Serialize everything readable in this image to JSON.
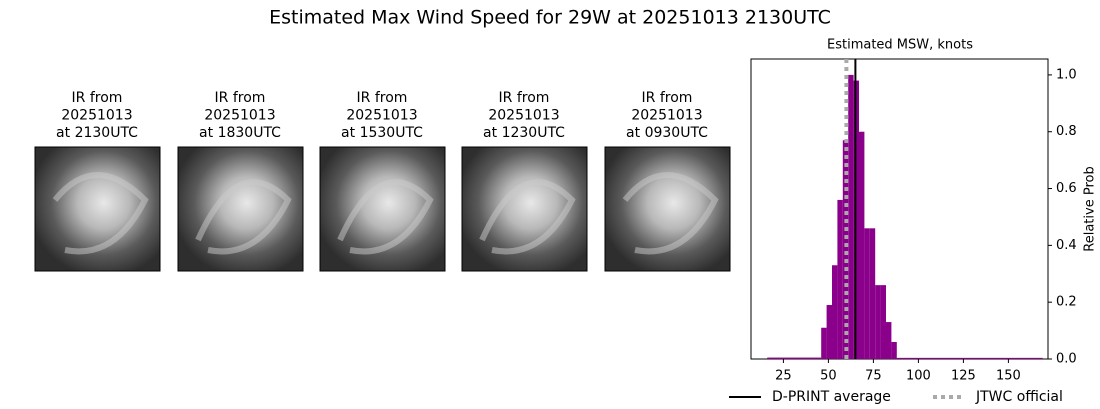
{
  "figure_title": "Estimated Max Wind Speed for 29W at 20251013 2130UTC",
  "panels": [
    {
      "title_lines": [
        "IR from",
        "20251013",
        "at 2130UTC"
      ]
    },
    {
      "title_lines": [
        "IR from",
        "20251013",
        "at 1830UTC"
      ]
    },
    {
      "title_lines": [
        "IR from",
        "20251013",
        "at 1530UTC"
      ]
    },
    {
      "title_lines": [
        "IR from",
        "20251013",
        "at 1230UTC"
      ]
    },
    {
      "title_lines": [
        "IR from",
        "20251013",
        "at 0930UTC"
      ]
    }
  ],
  "chart_data": {
    "type": "histogram",
    "title": "Estimated MSW, knots",
    "y_label": "Relative Prob",
    "bins": [
      16,
      46,
      49,
      52,
      55,
      58,
      61,
      64,
      67,
      70,
      73,
      76,
      79,
      82,
      85,
      88,
      169
    ],
    "values": [
      0.005,
      0.11,
      0.19,
      0.33,
      0.56,
      0.77,
      1.0,
      0.98,
      0.8,
      0.46,
      0.46,
      0.26,
      0.26,
      0.13,
      0.06,
      0.004
    ],
    "color": "#8b008b",
    "xlim": [
      7,
      172
    ],
    "xticks": [
      25,
      50,
      75,
      100,
      125,
      150
    ],
    "ylim": [
      0,
      1.056
    ],
    "yticks": [
      {
        "value": 0,
        "label": "0.0"
      },
      {
        "value": 0.2,
        "label": "0.2"
      },
      {
        "value": 0.4,
        "label": "0.4"
      },
      {
        "value": 0.6,
        "label": "0.6"
      },
      {
        "value": 0.8,
        "label": "0.8"
      },
      {
        "value": 1.0,
        "label": "1.0"
      }
    ],
    "vlines": [
      {
        "name": "D-PRINT average",
        "x": 65,
        "color": "#000000",
        "style": "solid"
      },
      {
        "name": "JTWC official",
        "x": 60,
        "color": "#aaaaaa",
        "style": "dotted"
      }
    ]
  }
}
